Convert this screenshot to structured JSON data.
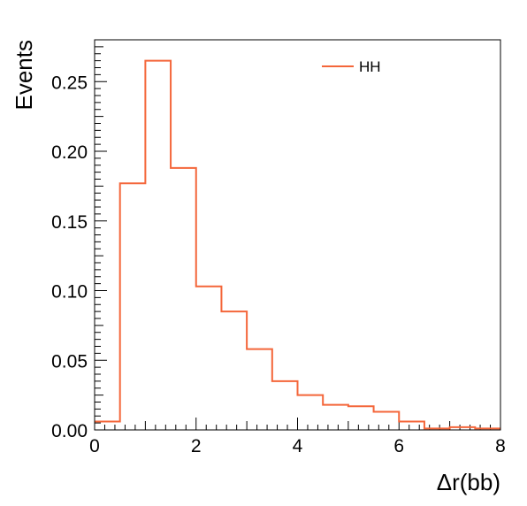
{
  "chart_data": {
    "type": "histogram",
    "xlabel": "Δr(bb)",
    "ylabel": "Events",
    "xlim": [
      0,
      8
    ],
    "ylim": [
      0,
      0.28
    ],
    "x_ticks": [
      "0",
      "2",
      "4",
      "6",
      "8"
    ],
    "y_ticks": [
      "0.00",
      "0.05",
      "0.10",
      "0.15",
      "0.20",
      "0.25"
    ],
    "bin_edges": [
      0,
      0.5,
      1.0,
      1.5,
      2.0,
      2.5,
      3.0,
      3.5,
      4.0,
      4.5,
      5.0,
      5.5,
      6.0,
      6.5,
      7.0,
      7.5,
      8.0
    ],
    "series": [
      {
        "name": "HH",
        "color": "#f4663a",
        "values": [
          0.006,
          0.177,
          0.265,
          0.188,
          0.103,
          0.085,
          0.058,
          0.035,
          0.025,
          0.018,
          0.017,
          0.013,
          0.006,
          0.001,
          0.002,
          0.001
        ]
      }
    ],
    "legend_position": "top-right",
    "grid": false
  }
}
